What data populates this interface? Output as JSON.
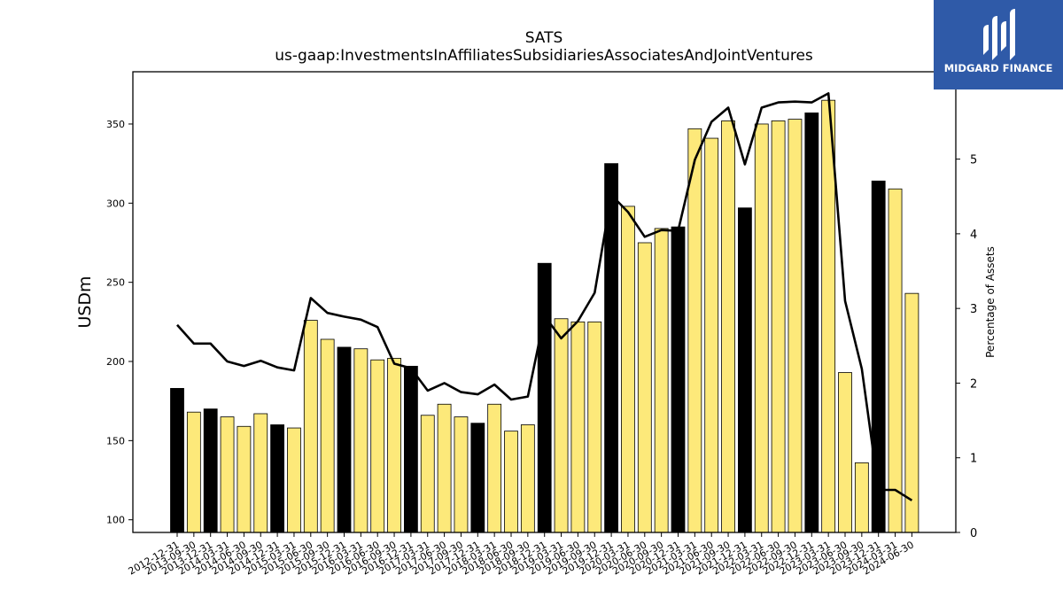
{
  "chart_data": {
    "type": "bar",
    "title": "SATS",
    "subtitle": "us-gaap:InvestmentsInAffiliatesSubsidiariesAssociatesAndJointVentures",
    "ylabel": "USDm",
    "y2label": "Percentage of Assets",
    "ylim": [
      92,
      383
    ],
    "y2lim": [
      0,
      6.17
    ],
    "yticks": [
      100,
      150,
      200,
      250,
      300,
      350
    ],
    "y2ticks": [
      0,
      1,
      2,
      3,
      4,
      5
    ],
    "categories": [
      "2012-12-31",
      "2013-09-30",
      "2013-12-31",
      "2014-03-31",
      "2014-06-30",
      "2014-09-30",
      "2014-12-31",
      "2015-03-31",
      "2015-06-30",
      "2015-09-30",
      "2015-12-31",
      "2016-03-31",
      "2016-06-30",
      "2016-09-30",
      "2016-12-31",
      "2017-03-31",
      "2017-06-30",
      "2017-09-30",
      "2017-12-31",
      "2018-03-31",
      "2018-06-30",
      "2018-09-30",
      "2018-12-31",
      "2019-03-31",
      "2019-06-30",
      "2019-09-30",
      "2019-12-31",
      "2020-03-31",
      "2020-06-30",
      "2020-09-30",
      "2020-12-31",
      "2021-03-31",
      "2021-06-30",
      "2021-09-30",
      "2021-12-31",
      "2022-03-31",
      "2022-06-30",
      "2022-09-30",
      "2022-12-31",
      "2023-03-31",
      "2023-06-30",
      "2023-09-30",
      "2023-12-31",
      "2024-03-31",
      "2024-06-30"
    ],
    "series": [
      {
        "type": "bar",
        "values": [
          183,
          168,
          170,
          165,
          159,
          167,
          160,
          158,
          226,
          214,
          209,
          208,
          201,
          202,
          197,
          166,
          173,
          165,
          161,
          173,
          156,
          160,
          262,
          227,
          225,
          225,
          325,
          298,
          275,
          284,
          285,
          347,
          341,
          352,
          297,
          350,
          352,
          353,
          357,
          365,
          193,
          136,
          314,
          309,
          243
        ],
        "colors_key": [
          "Q4",
          "Q",
          "Q4",
          "Q",
          "Q",
          "Q",
          "Q4",
          "Q",
          "Q",
          "Q",
          "Q4",
          "Q",
          "Q",
          "Q",
          "Q4",
          "Q",
          "Q",
          "Q",
          "Q4",
          "Q",
          "Q",
          "Q",
          "Q4",
          "Q",
          "Q",
          "Q",
          "Q4",
          "Q",
          "Q",
          "Q",
          "Q4",
          "Q",
          "Q",
          "Q",
          "Q4",
          "Q",
          "Q",
          "Q",
          "Q4",
          "Q",
          "Q",
          "Q",
          "Q4",
          "Q",
          "Q"
        ]
      },
      {
        "type": "line",
        "axis": "right",
        "values": [
          2.78,
          2.53,
          2.53,
          2.29,
          2.23,
          2.3,
          2.21,
          2.17,
          3.14,
          2.94,
          2.89,
          2.85,
          2.75,
          2.26,
          2.2,
          1.9,
          2.0,
          1.88,
          1.85,
          1.98,
          1.78,
          1.82,
          2.9,
          2.6,
          2.83,
          3.21,
          4.52,
          4.29,
          3.96,
          4.05,
          4.04,
          4.99,
          5.5,
          5.69,
          4.93,
          5.69,
          5.76,
          5.77,
          5.76,
          5.88,
          3.1,
          2.19,
          0.57,
          0.57,
          0.43
        ]
      }
    ],
    "colors": {
      "q4_bar": "#000000",
      "bar": "#fde97a",
      "bar_edge": "#000000",
      "line": "#000000"
    },
    "grid": false
  },
  "logo": {
    "text": "MIDGARD FINANCE",
    "icon": "midgard-logo-icon",
    "bg": "#2f5aa8"
  }
}
